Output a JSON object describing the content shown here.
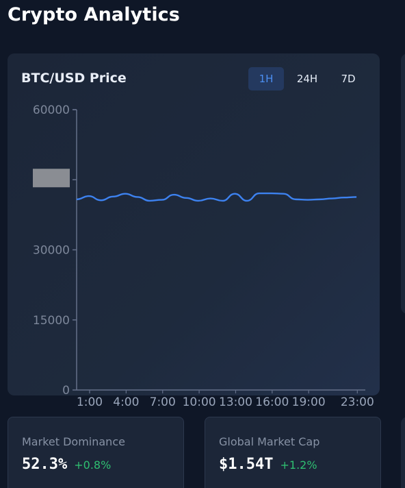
{
  "app": {
    "title": "Crypto Analytics"
  },
  "price_panel": {
    "title": "BTC/USD Price",
    "timeframes": [
      "1H",
      "24H",
      "7D"
    ],
    "active_timeframe": "1H"
  },
  "stats": [
    {
      "label": "Market Dominance",
      "value": "52.3%",
      "change": "+0.8%"
    },
    {
      "label": "Global Market Cap",
      "value": "$1.54T",
      "change": "+1.2%"
    }
  ],
  "colors": {
    "line": "#3d82f0",
    "positive": "#2fbf71",
    "active_tab": "#4b8ef1",
    "background": "#0f1727"
  },
  "chart_data": {
    "type": "line",
    "title": "BTC/USD Price",
    "xlabel": "",
    "ylabel": "",
    "ylim": [
      0,
      60000
    ],
    "y_ticks": [
      0,
      15000,
      30000,
      60000
    ],
    "x_ticks": [
      "1:00",
      "4:00",
      "7:00",
      "10:00",
      "13:00",
      "16:00",
      "19:00",
      "23:00"
    ],
    "grid": false,
    "series": [
      {
        "x": [
          0,
          1,
          2,
          3,
          4,
          5,
          6,
          7,
          8,
          9,
          10,
          11,
          12,
          13,
          14,
          15,
          16,
          17,
          18,
          19,
          20,
          21,
          22,
          23
        ],
        "values": [
          40800,
          41500,
          40600,
          41400,
          42000,
          41300,
          40500,
          40700,
          41800,
          41100,
          40500,
          41000,
          40500,
          42000,
          40500,
          42100,
          42100,
          42000,
          40800,
          40700,
          40800,
          41000,
          41200,
          41300
        ]
      }
    ]
  }
}
